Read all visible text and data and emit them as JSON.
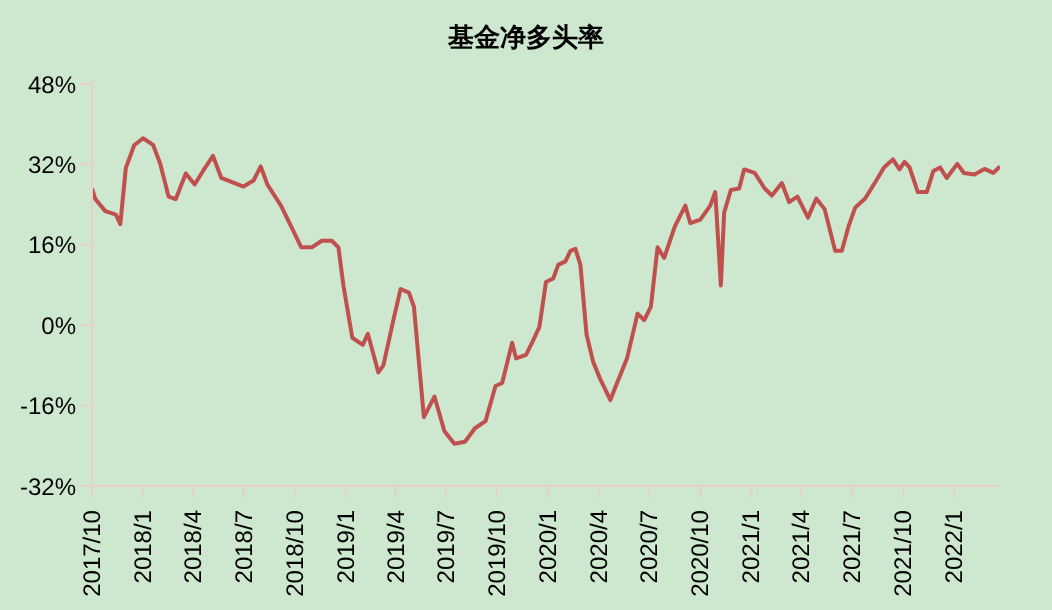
{
  "chart_data": {
    "type": "line",
    "title": "基金净多头率",
    "x": [
      "2017-10-01",
      "2017-10-07",
      "2017-10-25",
      "2017-11-13",
      "2017-11-21",
      "2017-12-01",
      "2017-12-16",
      "2018-01-01",
      "2018-01-19",
      "2018-02-01",
      "2018-02-16",
      "2018-03-01",
      "2018-03-19",
      "2018-04-04",
      "2018-04-19",
      "2018-05-07",
      "2018-05-22",
      "2018-06-07",
      "2018-07-01",
      "2018-07-19",
      "2018-08-01",
      "2018-08-13",
      "2018-09-07",
      "2018-09-25",
      "2018-10-13",
      "2018-11-01",
      "2018-11-19",
      "2018-12-07",
      "2018-12-19",
      "2018-12-28",
      "2019-01-13",
      "2019-02-01",
      "2019-02-10",
      "2019-03-01",
      "2019-03-10",
      "2019-03-28",
      "2019-04-10",
      "2019-04-25",
      "2019-05-04",
      "2019-05-22",
      "2019-06-10",
      "2019-06-28",
      "2019-07-16",
      "2019-08-04",
      "2019-08-22",
      "2019-09-10",
      "2019-09-28",
      "2019-10-10",
      "2019-10-28",
      "2019-11-04",
      "2019-11-22",
      "2019-12-04",
      "2019-12-16",
      "2019-12-28",
      "2020-01-10",
      "2020-01-19",
      "2020-02-01",
      "2020-02-10",
      "2020-02-19",
      "2020-02-28",
      "2020-03-10",
      "2020-03-22",
      "2020-04-04",
      "2020-04-22",
      "2020-05-04",
      "2020-05-22",
      "2020-06-10",
      "2020-06-22",
      "2020-07-04",
      "2020-07-16",
      "2020-07-28",
      "2020-08-16",
      "2020-09-04",
      "2020-09-13",
      "2020-10-01",
      "2020-10-19",
      "2020-10-28",
      "2020-11-07",
      "2020-11-13",
      "2020-11-25",
      "2020-12-10",
      "2020-12-19",
      "2021-01-07",
      "2021-01-25",
      "2021-02-07",
      "2021-02-25",
      "2021-03-10",
      "2021-03-25",
      "2021-04-13",
      "2021-04-28",
      "2021-05-13",
      "2021-06-01",
      "2021-06-13",
      "2021-06-25",
      "2021-07-07",
      "2021-07-25",
      "2021-08-13",
      "2021-08-28",
      "2021-09-13",
      "2021-09-25",
      "2021-10-04",
      "2021-10-13",
      "2021-10-28",
      "2021-11-13",
      "2021-11-25",
      "2021-12-07",
      "2021-12-19",
      "2022-01-07",
      "2022-01-19",
      "2022-02-07",
      "2022-02-25",
      "2022-03-13",
      "2022-03-25"
    ],
    "series": [
      {
        "color": "#c0504d",
        "values": [
          27.2,
          25.1,
          22.7,
          22.0,
          20.1,
          31.3,
          35.8,
          37.2,
          35.9,
          32.1,
          25.6,
          25.1,
          30.2,
          28.0,
          30.7,
          33.7,
          29.3,
          28.6,
          27.6,
          28.8,
          31.6,
          28.0,
          23.7,
          19.6,
          15.5,
          15.5,
          16.8,
          16.8,
          15.5,
          7.9,
          -2.5,
          -3.9,
          -1.7,
          -9.4,
          -8.0,
          1.0,
          7.2,
          6.5,
          3.7,
          -18.3,
          -14.2,
          -21.1,
          -23.6,
          -23.2,
          -20.5,
          -19.1,
          -12.1,
          -11.5,
          -3.5,
          -6.6,
          -5.9,
          -3.2,
          -0.4,
          8.6,
          9.3,
          12.0,
          12.7,
          14.8,
          15.2,
          12.0,
          -1.8,
          -7.3,
          -10.8,
          -14.9,
          -11.5,
          -6.6,
          2.3,
          1.0,
          3.7,
          15.5,
          13.4,
          19.6,
          23.8,
          20.3,
          21.0,
          23.8,
          26.5,
          7.9,
          22.4,
          26.9,
          27.2,
          31.0,
          30.3,
          27.2,
          25.8,
          28.3,
          24.5,
          25.6,
          21.4,
          25.2,
          23.1,
          14.8,
          14.8,
          19.6,
          23.4,
          25.2,
          28.6,
          31.4,
          33.0,
          31.0,
          32.5,
          31.4,
          26.5,
          26.5,
          30.7,
          31.4,
          29.3,
          32.1,
          30.3,
          30.0,
          31.1,
          30.3,
          31.6
        ]
      }
    ],
    "xlim": [
      "2017-10-01",
      "2022-03-25"
    ],
    "xticks": [
      {
        "value": "2017-10",
        "label": "2017/10"
      },
      {
        "value": "2018-01",
        "label": "2018/1"
      },
      {
        "value": "2018-04",
        "label": "2018/4"
      },
      {
        "value": "2018-07",
        "label": "2018/7"
      },
      {
        "value": "2018-10",
        "label": "2018/10"
      },
      {
        "value": "2019-01",
        "label": "2019/1"
      },
      {
        "value": "2019-04",
        "label": "2019/4"
      },
      {
        "value": "2019-07",
        "label": "2019/7"
      },
      {
        "value": "2019-10",
        "label": "2019/10"
      },
      {
        "value": "2020-01",
        "label": "2020/1"
      },
      {
        "value": "2020-04",
        "label": "2020/4"
      },
      {
        "value": "2020-07",
        "label": "2020/7"
      },
      {
        "value": "2020-10",
        "label": "2020/10"
      },
      {
        "value": "2021-01",
        "label": "2021/1"
      },
      {
        "value": "2021-04",
        "label": "2021/4"
      },
      {
        "value": "2021-07",
        "label": "2021/7"
      },
      {
        "value": "2021-10",
        "label": "2021/10"
      },
      {
        "value": "2022-01",
        "label": "2022/1"
      }
    ],
    "ylim": [
      -32,
      48
    ],
    "yticks": [
      {
        "value": -32,
        "label": "-32%"
      },
      {
        "value": -16,
        "label": "-16%"
      },
      {
        "value": 0,
        "label": "0%"
      },
      {
        "value": 16,
        "label": "16%"
      },
      {
        "value": 32,
        "label": "32%"
      },
      {
        "value": 48,
        "label": "48%"
      }
    ],
    "grid": false,
    "legend": false,
    "marker": "none",
    "line_style": "solid"
  }
}
